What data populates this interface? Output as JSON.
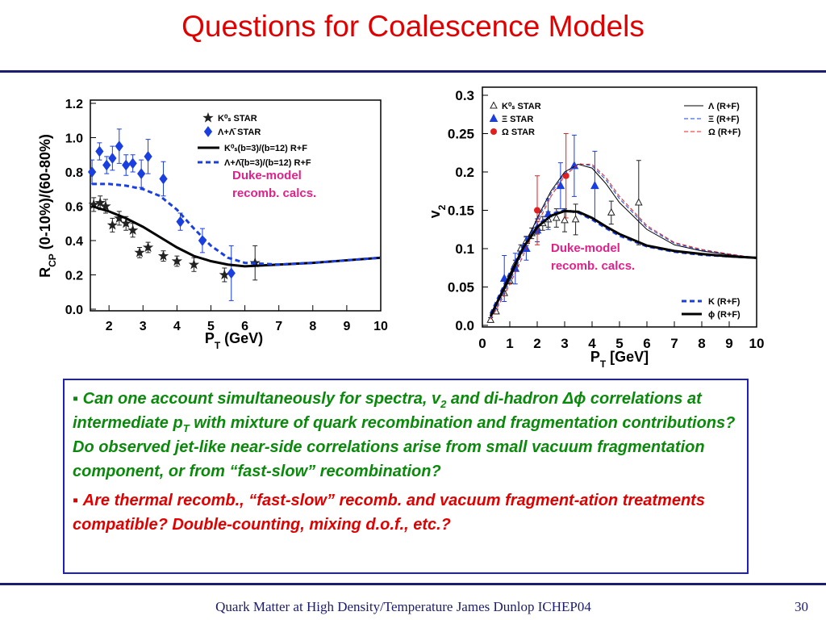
{
  "title": "Questions for Coalescence Models",
  "chart_data": [
    {
      "type": "scatter",
      "xlabel": [
        "P",
        "T",
        " (GeV)"
      ],
      "ylabel": [
        "R",
        "CP",
        " (0-10%)/(60-80%)"
      ],
      "xlim": [
        1.45,
        10
      ],
      "ylim": [
        0,
        1.2
      ],
      "xticks": [
        2,
        3,
        4,
        5,
        6,
        7,
        8,
        9,
        10
      ],
      "yticks": [
        {
          "value": 0,
          "label": "0.0"
        },
        {
          "value": 0.2,
          "label": "0.2"
        },
        {
          "value": 0.4,
          "label": "0.4"
        },
        {
          "value": 0.6,
          "label": "0.6"
        },
        {
          "value": 0.8,
          "label": "0.8"
        },
        {
          "value": 1.0,
          "label": "1.0"
        },
        {
          "value": 1.2,
          "label": "1.2"
        }
      ],
      "annotation": [
        "Duke-model",
        "recomb. calcs."
      ],
      "series": [
        {
          "name": "K⁰ₛ STAR",
          "color": "#222222",
          "marker": "star",
          "x": [
            1.55,
            1.74,
            1.9,
            2.1,
            2.3,
            2.5,
            2.7,
            2.9,
            3.15,
            3.6,
            4.0,
            4.5,
            5.4,
            6.3
          ],
          "values": [
            0.61,
            0.62,
            0.6,
            0.49,
            0.53,
            0.5,
            0.46,
            0.33,
            0.36,
            0.31,
            0.28,
            0.26,
            0.2,
            0.27
          ],
          "errors": [
            0.04,
            0.04,
            0.04,
            0.04,
            0.04,
            0.04,
            0.04,
            0.03,
            0.03,
            0.03,
            0.03,
            0.04,
            0.04,
            0.1
          ]
        },
        {
          "name": "Λ+Λ̄ STAR",
          "color": "#1a3fe0",
          "marker": "diamond",
          "x": [
            1.5,
            1.72,
            1.93,
            2.1,
            2.3,
            2.5,
            2.7,
            2.95,
            3.15,
            3.6,
            4.1,
            4.75,
            5.6
          ],
          "values": [
            0.8,
            0.92,
            0.84,
            0.88,
            0.95,
            0.84,
            0.85,
            0.79,
            0.89,
            0.76,
            0.51,
            0.4,
            0.21
          ],
          "errors": [
            0.07,
            0.05,
            0.05,
            0.07,
            0.1,
            0.06,
            0.05,
            0.08,
            0.1,
            0.1,
            0.05,
            0.07,
            0.16
          ]
        },
        {
          "name": "K⁰ₛ(b=3)/(b=12) R+F",
          "color": "#000000",
          "marker": "line",
          "dash": false,
          "width": 3,
          "x": [
            1.5,
            2,
            2.5,
            3,
            3.5,
            4,
            4.5,
            5,
            5.5,
            6,
            7,
            8,
            9,
            10
          ],
          "values": [
            0.6,
            0.57,
            0.53,
            0.48,
            0.42,
            0.36,
            0.31,
            0.28,
            0.26,
            0.25,
            0.26,
            0.27,
            0.285,
            0.3
          ]
        },
        {
          "name": "Λ+Λ̄(b=3)/(b=12) R+F",
          "color": "#1a3fe0",
          "marker": "line",
          "dash": true,
          "width": 3,
          "x": [
            1.5,
            2,
            2.5,
            3,
            3.5,
            4,
            4.5,
            5,
            5.5,
            6,
            7,
            8,
            9,
            10
          ],
          "values": [
            0.73,
            0.73,
            0.72,
            0.7,
            0.66,
            0.58,
            0.47,
            0.37,
            0.3,
            0.27,
            0.26,
            0.27,
            0.285,
            0.3
          ]
        }
      ]
    },
    {
      "type": "scatter",
      "xlabel": [
        "P",
        "T",
        " [GeV]"
      ],
      "ylabel": [
        "v",
        "2"
      ],
      "xlim": [
        0,
        10
      ],
      "ylim": [
        0,
        0.3
      ],
      "xticks": [
        0,
        1,
        2,
        3,
        4,
        5,
        6,
        7,
        8,
        9,
        10
      ],
      "yticks": [
        {
          "value": 0,
          "label": "0.0"
        },
        0.05,
        0.1,
        0.15,
        0.2,
        0.25,
        0.3
      ],
      "annotation": [
        "Duke-model",
        "recomb. calcs."
      ],
      "series": [
        {
          "name": "K⁰ₛ STAR",
          "color": "#222222",
          "marker": "triangle-open",
          "x": [
            0.3,
            0.5,
            0.8,
            1.0,
            1.2,
            1.4,
            1.6,
            1.8,
            2.0,
            2.2,
            2.4,
            2.7,
            3.0,
            3.4,
            4.7,
            5.7
          ],
          "values": [
            0.007,
            0.018,
            0.042,
            0.058,
            0.08,
            0.1,
            0.11,
            0.12,
            0.127,
            0.133,
            0.138,
            0.14,
            0.137,
            0.138,
            0.147,
            0.16
          ],
          "errors": [
            0.003,
            0.003,
            0.003,
            0.004,
            0.005,
            0.005,
            0.006,
            0.007,
            0.008,
            0.009,
            0.01,
            0.012,
            0.015,
            0.02,
            0.015,
            0.055
          ]
        },
        {
          "name": "Ξ STAR",
          "color": "#1a3fe0",
          "marker": "triangle",
          "x": [
            0.8,
            1.2,
            1.6,
            2.0,
            2.4,
            2.85,
            3.35,
            4.1
          ],
          "values": [
            0.061,
            0.074,
            0.1,
            0.124,
            0.145,
            0.182,
            0.208,
            0.182
          ],
          "errors": [
            0.03,
            0.02,
            0.015,
            0.015,
            0.02,
            0.03,
            0.04,
            0.045
          ]
        },
        {
          "name": "Ω STAR",
          "color": "#e02020",
          "marker": "circle",
          "x": [
            2.0,
            3.05
          ],
          "values": [
            0.15,
            0.195
          ],
          "errors": [
            0.045,
            0.055
          ]
        },
        {
          "name": "Λ (R+F)",
          "color": "#000000",
          "marker": "line",
          "dash": false,
          "width": 1,
          "x": [
            0.3,
            0.5,
            1,
            1.5,
            2,
            2.5,
            3,
            3.5,
            4,
            4.5,
            5,
            6,
            7,
            8,
            9,
            10
          ],
          "values": [
            0.012,
            0.025,
            0.06,
            0.1,
            0.14,
            0.175,
            0.2,
            0.21,
            0.205,
            0.185,
            0.16,
            0.125,
            0.105,
            0.097,
            0.092,
            0.088
          ]
        },
        {
          "name": "Ξ (R+F)",
          "color": "#1a3fe0",
          "marker": "line",
          "dash": true,
          "width": 1,
          "x": [
            0.3,
            0.5,
            1,
            1.5,
            2,
            2.5,
            3,
            3.5,
            4,
            4.5,
            5,
            6,
            7,
            8,
            9,
            10
          ],
          "values": [
            0.01,
            0.022,
            0.057,
            0.097,
            0.137,
            0.172,
            0.198,
            0.211,
            0.208,
            0.19,
            0.165,
            0.128,
            0.107,
            0.098,
            0.093,
            0.088
          ]
        },
        {
          "name": "Ω (R+F)",
          "color": "#e02020",
          "marker": "line",
          "dash": true,
          "width": 1,
          "x": [
            0.3,
            0.5,
            1,
            1.5,
            2,
            2.5,
            3,
            3.5,
            4,
            4.5,
            5,
            6,
            7,
            8,
            9,
            10
          ],
          "values": [
            0.008,
            0.02,
            0.053,
            0.092,
            0.132,
            0.168,
            0.195,
            0.21,
            0.21,
            0.193,
            0.168,
            0.13,
            0.108,
            0.099,
            0.093,
            0.088
          ]
        },
        {
          "name": "K (R+F)",
          "color": "#1a3fe0",
          "marker": "line",
          "dash": true,
          "width": 3,
          "x": [
            0.3,
            0.5,
            1,
            1.5,
            2,
            2.5,
            3,
            3.5,
            4,
            4.5,
            5,
            6,
            7,
            8,
            9,
            10
          ],
          "values": [
            0.015,
            0.03,
            0.068,
            0.105,
            0.13,
            0.145,
            0.15,
            0.147,
            0.138,
            0.127,
            0.117,
            0.103,
            0.096,
            0.092,
            0.09,
            0.088
          ]
        },
        {
          "name": "ϕ (R+F)",
          "color": "#000000",
          "marker": "line",
          "dash": false,
          "width": 3,
          "x": [
            0.3,
            0.5,
            1,
            1.5,
            2,
            2.5,
            3,
            3.5,
            4,
            4.5,
            5,
            6,
            7,
            8,
            9,
            10
          ],
          "values": [
            0.012,
            0.027,
            0.065,
            0.102,
            0.128,
            0.143,
            0.149,
            0.148,
            0.14,
            0.129,
            0.119,
            0.104,
            0.097,
            0.093,
            0.09,
            0.088
          ]
        }
      ]
    }
  ],
  "bullets": [
    [
      "Can one account simultaneously for spectra, v",
      "2",
      " and di-hadron Δϕ correlations at intermediate p",
      "T",
      " with mixture of quark recombination and fragmentation contributions? Do observed jet-like near-side correlations arise from small vacuum fragmentation component, or from “fast-slow” recombination?"
    ],
    [
      "Are thermal recomb., “fast-slow” recomb. and vacuum fragment-ation treatments compatible? Double-counting, mixing d.o.f., etc.?"
    ]
  ],
  "footer": {
    "text": "Quark Matter at High Density/Temperature James Dunlop ICHEP04",
    "page": "30"
  }
}
